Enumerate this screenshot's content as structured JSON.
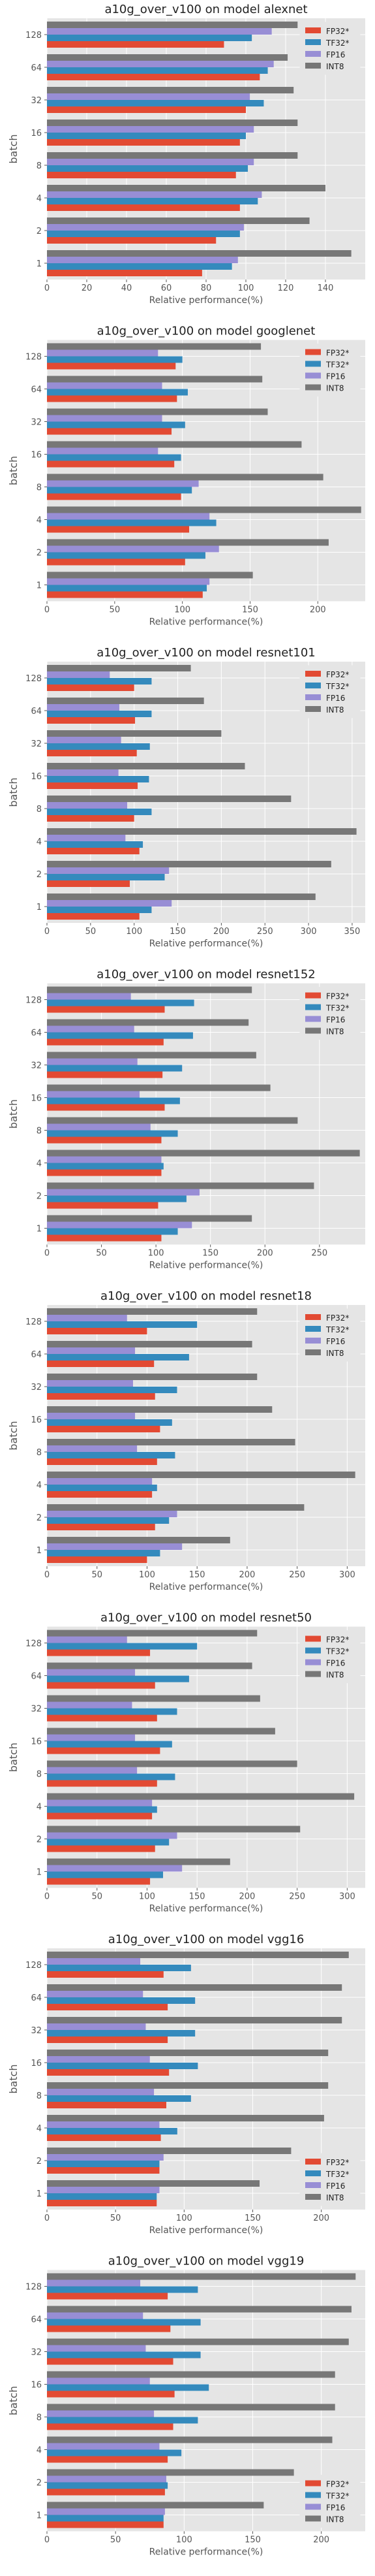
{
  "figure": {
    "series_names": [
      "FP32*",
      "TF32*",
      "FP16",
      "INT8"
    ],
    "colors": {
      "FP32*": "#e24a33",
      "TF32*": "#348abd",
      "FP16": "#988ed5",
      "INT8": "#777777"
    },
    "background": "#e5e5e5",
    "grid_color": "#ffffff"
  },
  "chart_data": [
    {
      "type": "bar",
      "orientation": "horizontal",
      "title": "a10g_over_v100 on model alexnet",
      "xlabel": "Relative performance(%)",
      "ylabel": "batch",
      "categories": [
        "1",
        "2",
        "4",
        "8",
        "16",
        "32",
        "64",
        "128"
      ],
      "xlim": [
        0,
        160
      ],
      "xticks": [
        0,
        20,
        40,
        60,
        80,
        100,
        120,
        140
      ],
      "legend_position": "top-right",
      "grid": true,
      "series": [
        {
          "name": "FP32*",
          "values": [
            78,
            85,
            97,
            95,
            97,
            100,
            107,
            89
          ]
        },
        {
          "name": "TF32*",
          "values": [
            93,
            97,
            106,
            101,
            100,
            109,
            111,
            103
          ]
        },
        {
          "name": "FP16",
          "values": [
            96,
            99,
            108,
            104,
            104,
            102,
            114,
            113
          ]
        },
        {
          "name": "INT8",
          "values": [
            153,
            132,
            140,
            126,
            126,
            124,
            121,
            126
          ]
        }
      ]
    },
    {
      "type": "bar",
      "orientation": "horizontal",
      "title": "a10g_over_v100 on model googlenet",
      "xlabel": "Relative performance(%)",
      "ylabel": "batch",
      "categories": [
        "1",
        "2",
        "4",
        "8",
        "16",
        "32",
        "64",
        "128"
      ],
      "xlim": [
        0,
        235
      ],
      "xticks": [
        0,
        50,
        100,
        150,
        200
      ],
      "legend_position": "top-right",
      "grid": true,
      "series": [
        {
          "name": "FP32*",
          "values": [
            115,
            102,
            105,
            99,
            94,
            92,
            96,
            95
          ]
        },
        {
          "name": "TF32*",
          "values": [
            118,
            117,
            125,
            107,
            99,
            102,
            104,
            100
          ]
        },
        {
          "name": "FP16",
          "values": [
            120,
            127,
            120,
            112,
            82,
            85,
            85,
            82
          ]
        },
        {
          "name": "INT8",
          "values": [
            152,
            208,
            232,
            204,
            188,
            163,
            159,
            158
          ]
        }
      ]
    },
    {
      "type": "bar",
      "orientation": "horizontal",
      "title": "a10g_over_v100 on model resnet101",
      "xlabel": "Relative performance(%)",
      "ylabel": "batch",
      "categories": [
        "1",
        "2",
        "4",
        "8",
        "16",
        "32",
        "64",
        "128"
      ],
      "xlim": [
        0,
        365
      ],
      "xticks": [
        0,
        50,
        100,
        150,
        200,
        250,
        300,
        350
      ],
      "legend_position": "top-right",
      "grid": true,
      "series": [
        {
          "name": "FP32*",
          "values": [
            106,
            95,
            106,
            100,
            104,
            103,
            101,
            100
          ]
        },
        {
          "name": "TF32*",
          "values": [
            120,
            135,
            110,
            120,
            117,
            118,
            120,
            120
          ]
        },
        {
          "name": "FP16",
          "values": [
            143,
            140,
            90,
            92,
            82,
            85,
            83,
            72
          ]
        },
        {
          "name": "INT8",
          "values": [
            308,
            326,
            355,
            280,
            227,
            200,
            180,
            165
          ]
        }
      ]
    },
    {
      "type": "bar",
      "orientation": "horizontal",
      "title": "a10g_over_v100 on model resnet152",
      "xlabel": "Relative performance(%)",
      "ylabel": "batch",
      "categories": [
        "1",
        "2",
        "4",
        "8",
        "16",
        "32",
        "64",
        "128"
      ],
      "xlim": [
        0,
        292
      ],
      "xticks": [
        0,
        50,
        100,
        150,
        200,
        250
      ],
      "legend_position": "top-right",
      "grid": true,
      "series": [
        {
          "name": "FP32*",
          "values": [
            105,
            102,
            105,
            105,
            108,
            106,
            107,
            108
          ]
        },
        {
          "name": "TF32*",
          "values": [
            120,
            128,
            107,
            120,
            122,
            124,
            134,
            135
          ]
        },
        {
          "name": "FP16",
          "values": [
            133,
            140,
            105,
            95,
            85,
            83,
            80,
            77
          ]
        },
        {
          "name": "INT8",
          "values": [
            188,
            245,
            287,
            230,
            205,
            192,
            185,
            188
          ]
        }
      ]
    },
    {
      "type": "bar",
      "orientation": "horizontal",
      "title": "a10g_over_v100 on model resnet18",
      "xlabel": "Relative performance(%)",
      "ylabel": "batch",
      "categories": [
        "1",
        "2",
        "4",
        "8",
        "16",
        "32",
        "64",
        "128"
      ],
      "xlim": [
        0,
        318
      ],
      "xticks": [
        0,
        50,
        100,
        150,
        200,
        250,
        300
      ],
      "legend_position": "top-right",
      "grid": true,
      "series": [
        {
          "name": "FP32*",
          "values": [
            100,
            108,
            105,
            110,
            113,
            108,
            107,
            100
          ]
        },
        {
          "name": "TF32*",
          "values": [
            113,
            122,
            110,
            128,
            125,
            130,
            142,
            150
          ]
        },
        {
          "name": "FP16",
          "values": [
            135,
            130,
            105,
            90,
            88,
            86,
            88,
            80
          ]
        },
        {
          "name": "INT8",
          "values": [
            183,
            257,
            308,
            248,
            225,
            210,
            205,
            210
          ]
        }
      ]
    },
    {
      "type": "bar",
      "orientation": "horizontal",
      "title": "a10g_over_v100 on model resnet50",
      "xlabel": "Relative performance(%)",
      "ylabel": "batch",
      "categories": [
        "1",
        "2",
        "4",
        "8",
        "16",
        "32",
        "64",
        "128"
      ],
      "xlim": [
        0,
        318
      ],
      "xticks": [
        0,
        50,
        100,
        150,
        200,
        250,
        300
      ],
      "legend_position": "top-right",
      "grid": true,
      "series": [
        {
          "name": "FP32*",
          "values": [
            103,
            108,
            105,
            110,
            113,
            110,
            108,
            103
          ]
        },
        {
          "name": "TF32*",
          "values": [
            116,
            122,
            110,
            128,
            125,
            130,
            142,
            150
          ]
        },
        {
          "name": "FP16",
          "values": [
            135,
            130,
            105,
            90,
            88,
            85,
            88,
            80
          ]
        },
        {
          "name": "INT8",
          "values": [
            183,
            253,
            307,
            250,
            228,
            213,
            205,
            210
          ]
        }
      ]
    },
    {
      "type": "bar",
      "orientation": "horizontal",
      "title": "a10g_over_v100 on model vgg16",
      "xlabel": "Relative performance(%)",
      "ylabel": "batch",
      "categories": [
        "1",
        "2",
        "4",
        "8",
        "16",
        "32",
        "64",
        "128"
      ],
      "xlim": [
        0,
        232
      ],
      "xticks": [
        0,
        50,
        100,
        150,
        200
      ],
      "legend_position": "bottom-right",
      "grid": true,
      "series": [
        {
          "name": "FP32*",
          "values": [
            80,
            82,
            83,
            87,
            89,
            88,
            88,
            85
          ]
        },
        {
          "name": "TF32*",
          "values": [
            80,
            82,
            95,
            105,
            110,
            108,
            108,
            105
          ]
        },
        {
          "name": "FP16",
          "values": [
            82,
            85,
            82,
            78,
            75,
            72,
            70,
            68
          ]
        },
        {
          "name": "INT8",
          "values": [
            155,
            178,
            202,
            205,
            205,
            215,
            215,
            220
          ]
        }
      ]
    },
    {
      "type": "bar",
      "orientation": "horizontal",
      "title": "a10g_over_v100 on model vgg19",
      "xlabel": "Relative performance(%)",
      "ylabel": "batch",
      "categories": [
        "1",
        "2",
        "4",
        "8",
        "16",
        "32",
        "64",
        "128"
      ],
      "xlim": [
        0,
        232
      ],
      "xticks": [
        0,
        50,
        100,
        150,
        200
      ],
      "legend_position": "bottom-right",
      "grid": true,
      "series": [
        {
          "name": "FP32*",
          "values": [
            85,
            86,
            88,
            92,
            93,
            92,
            90,
            88
          ]
        },
        {
          "name": "TF32*",
          "values": [
            85,
            88,
            98,
            110,
            118,
            112,
            112,
            110
          ]
        },
        {
          "name": "FP16",
          "values": [
            86,
            87,
            82,
            78,
            75,
            72,
            70,
            68
          ]
        },
        {
          "name": "INT8",
          "values": [
            158,
            180,
            208,
            210,
            210,
            220,
            222,
            225
          ]
        }
      ]
    }
  ]
}
